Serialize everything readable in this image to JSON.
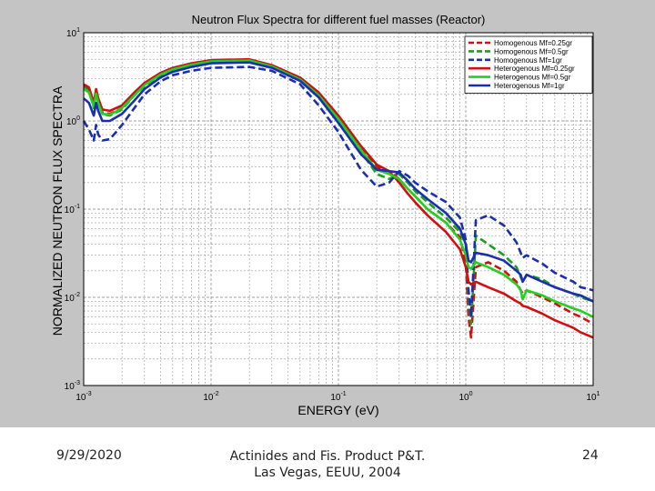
{
  "slide": {
    "footer_date": "9/29/2020",
    "footer_center_line1": "Actinides and Fis. Product P&T.",
    "footer_center_line2": "Las Vegas, EEUU, 2004",
    "page_number": "24"
  },
  "chart_data": {
    "type": "line",
    "title": "Neutron Flux Spectra for different fuel masses (Reactor)",
    "xlabel": "ENERGY (eV)",
    "ylabel": "NORMALIZED NEUTRON FLUX SPECTRA",
    "x_scale": "log",
    "y_scale": "log",
    "xlim": [
      0.001,
      10
    ],
    "ylim": [
      0.001,
      10
    ],
    "x_ticks": [
      0.001,
      0.01,
      0.1,
      1,
      10
    ],
    "y_ticks": [
      0.001,
      0.01,
      0.1,
      1,
      10
    ],
    "x_tick_labels": [
      "10^-3",
      "10^-2",
      "10^-1",
      "10^0",
      "10^1"
    ],
    "y_tick_labels": [
      "10^-3",
      "10^-2",
      "10^-1",
      "10^0",
      "10^1"
    ],
    "grid": true,
    "grid_style": "dashed",
    "legend_position": "top-right",
    "series": [
      {
        "name": "Homogenous Mf=0.25gr",
        "color": "#d01010",
        "dash": true,
        "x": [
          0.001,
          0.0011,
          0.0012,
          0.00125,
          0.0013,
          0.0014,
          0.0016,
          0.0018,
          0.002,
          0.0025,
          0.003,
          0.004,
          0.005,
          0.007,
          0.01,
          0.02,
          0.03,
          0.05,
          0.07,
          0.1,
          0.15,
          0.2,
          0.25,
          0.3,
          0.35,
          0.4,
          0.5,
          0.7,
          0.9,
          1.0,
          1.05,
          1.1,
          1.2,
          1.5,
          2.0,
          2.5,
          2.7,
          2.8,
          3.0,
          4.0,
          5.0,
          7.0,
          8.0,
          10.0
        ],
        "y": [
          2.5,
          2.3,
          1.5,
          2.2,
          1.7,
          1.25,
          1.2,
          1.3,
          1.4,
          2.0,
          2.6,
          3.4,
          3.9,
          4.4,
          4.8,
          4.9,
          4.2,
          3.0,
          2.0,
          1.1,
          0.5,
          0.3,
          0.27,
          0.22,
          0.17,
          0.14,
          0.1,
          0.07,
          0.048,
          0.025,
          0.006,
          0.0035,
          0.022,
          0.025,
          0.02,
          0.015,
          0.012,
          0.011,
          0.012,
          0.01,
          0.0085,
          0.0065,
          0.006,
          0.005
        ]
      },
      {
        "name": "Homogenous Mf=0.5gr",
        "color": "#1aa01a",
        "dash": true,
        "x": [
          0.001,
          0.0011,
          0.0012,
          0.00125,
          0.0013,
          0.0014,
          0.0016,
          0.0018,
          0.002,
          0.0025,
          0.003,
          0.004,
          0.005,
          0.007,
          0.01,
          0.02,
          0.03,
          0.05,
          0.07,
          0.1,
          0.15,
          0.2,
          0.25,
          0.3,
          0.35,
          0.4,
          0.5,
          0.7,
          0.9,
          1.0,
          1.05,
          1.1,
          1.2,
          1.5,
          2.0,
          2.5,
          2.7,
          2.8,
          3.0,
          4.0,
          5.0,
          7.0,
          8.0,
          10.0
        ],
        "y": [
          2.4,
          2.2,
          1.4,
          2.1,
          1.6,
          1.2,
          1.15,
          1.25,
          1.35,
          1.95,
          2.5,
          3.3,
          3.8,
          4.3,
          4.7,
          4.8,
          4.1,
          2.9,
          1.9,
          1.05,
          0.45,
          0.25,
          0.22,
          0.25,
          0.2,
          0.16,
          0.12,
          0.08,
          0.055,
          0.04,
          0.01,
          0.005,
          0.05,
          0.04,
          0.03,
          0.022,
          0.017,
          0.015,
          0.018,
          0.016,
          0.013,
          0.011,
          0.01,
          0.009
        ]
      },
      {
        "name": "Homogenous Mf=1gr",
        "color": "#1a2fb0",
        "dash": true,
        "x": [
          0.001,
          0.0011,
          0.0012,
          0.00125,
          0.0013,
          0.0014,
          0.0016,
          0.0018,
          0.002,
          0.0025,
          0.003,
          0.004,
          0.005,
          0.007,
          0.01,
          0.02,
          0.03,
          0.05,
          0.07,
          0.1,
          0.15,
          0.2,
          0.25,
          0.3,
          0.35,
          0.4,
          0.5,
          0.7,
          0.9,
          1.0,
          1.05,
          1.1,
          1.2,
          1.5,
          2.0,
          2.5,
          2.7,
          2.8,
          3.0,
          4.0,
          5.0,
          7.0,
          8.0,
          10.0
        ],
        "y": [
          1.0,
          0.8,
          0.6,
          0.9,
          0.7,
          0.6,
          0.62,
          0.75,
          0.9,
          1.4,
          2.0,
          2.8,
          3.3,
          3.7,
          4.0,
          4.1,
          3.7,
          2.6,
          1.5,
          0.75,
          0.28,
          0.18,
          0.2,
          0.27,
          0.24,
          0.2,
          0.16,
          0.12,
          0.08,
          0.045,
          0.012,
          0.006,
          0.075,
          0.085,
          0.065,
          0.042,
          0.032,
          0.028,
          0.03,
          0.024,
          0.019,
          0.015,
          0.013,
          0.012
        ]
      },
      {
        "name": "Heterogenous Mf=0.25gr",
        "color": "#d01010",
        "dash": false,
        "x": [
          0.001,
          0.0011,
          0.0012,
          0.00125,
          0.0013,
          0.0014,
          0.0016,
          0.0018,
          0.002,
          0.0025,
          0.003,
          0.004,
          0.005,
          0.007,
          0.01,
          0.02,
          0.03,
          0.05,
          0.07,
          0.1,
          0.15,
          0.2,
          0.25,
          0.3,
          0.35,
          0.4,
          0.5,
          0.7,
          0.9,
          1.0,
          1.05,
          1.1,
          1.2,
          1.5,
          2.0,
          2.5,
          2.7,
          2.8,
          3.0,
          4.0,
          5.0,
          7.0,
          8.0,
          10.0
        ],
        "y": [
          2.6,
          2.4,
          1.6,
          2.3,
          1.8,
          1.35,
          1.3,
          1.4,
          1.5,
          2.1,
          2.7,
          3.5,
          4.0,
          4.5,
          4.9,
          5.0,
          4.3,
          3.1,
          2.1,
          1.15,
          0.52,
          0.32,
          0.27,
          0.2,
          0.15,
          0.12,
          0.085,
          0.055,
          0.035,
          0.022,
          0.015,
          0.014,
          0.015,
          0.013,
          0.011,
          0.009,
          0.0085,
          0.008,
          0.0078,
          0.0065,
          0.0055,
          0.0045,
          0.004,
          0.0035
        ]
      },
      {
        "name": "Heterogenous Mf=0.5gr",
        "color": "#22d022",
        "dash": false,
        "x": [
          0.001,
          0.0011,
          0.0012,
          0.00125,
          0.0013,
          0.0014,
          0.0016,
          0.0018,
          0.002,
          0.0025,
          0.003,
          0.004,
          0.005,
          0.007,
          0.01,
          0.02,
          0.03,
          0.05,
          0.07,
          0.1,
          0.15,
          0.2,
          0.25,
          0.3,
          0.35,
          0.4,
          0.5,
          0.7,
          0.9,
          1.0,
          1.05,
          1.1,
          1.2,
          1.5,
          2.0,
          2.5,
          2.7,
          2.8,
          3.0,
          4.0,
          5.0,
          7.0,
          8.0,
          10.0
        ],
        "y": [
          2.3,
          2.1,
          1.45,
          2.05,
          1.6,
          1.2,
          1.18,
          1.28,
          1.4,
          1.95,
          2.55,
          3.35,
          3.85,
          4.35,
          4.75,
          4.85,
          4.15,
          2.95,
          1.95,
          1.05,
          0.47,
          0.28,
          0.25,
          0.22,
          0.17,
          0.14,
          0.1,
          0.07,
          0.045,
          0.03,
          0.022,
          0.021,
          0.025,
          0.022,
          0.018,
          0.014,
          0.012,
          0.0095,
          0.012,
          0.0105,
          0.009,
          0.0075,
          0.007,
          0.006
        ]
      },
      {
        "name": "Heterogenous Mf=1gr",
        "color": "#1a2fb0",
        "dash": false,
        "x": [
          0.001,
          0.0011,
          0.0012,
          0.00125,
          0.0013,
          0.0014,
          0.0016,
          0.0018,
          0.002,
          0.0025,
          0.003,
          0.004,
          0.005,
          0.007,
          0.01,
          0.02,
          0.03,
          0.05,
          0.07,
          0.1,
          0.15,
          0.2,
          0.25,
          0.3,
          0.35,
          0.4,
          0.5,
          0.7,
          0.9,
          1.0,
          1.05,
          1.1,
          1.2,
          1.5,
          2.0,
          2.5,
          2.7,
          2.8,
          3.0,
          4.0,
          5.0,
          7.0,
          8.0,
          10.0
        ],
        "y": [
          1.8,
          1.6,
          1.15,
          1.6,
          1.3,
          1.0,
          1.0,
          1.1,
          1.2,
          1.7,
          2.3,
          3.1,
          3.6,
          4.1,
          4.5,
          4.6,
          4.0,
          2.85,
          1.85,
          0.95,
          0.42,
          0.28,
          0.27,
          0.26,
          0.21,
          0.17,
          0.13,
          0.09,
          0.06,
          0.04,
          0.026,
          0.025,
          0.032,
          0.03,
          0.026,
          0.02,
          0.018,
          0.015,
          0.018,
          0.015,
          0.013,
          0.011,
          0.0105,
          0.009
        ]
      }
    ]
  }
}
